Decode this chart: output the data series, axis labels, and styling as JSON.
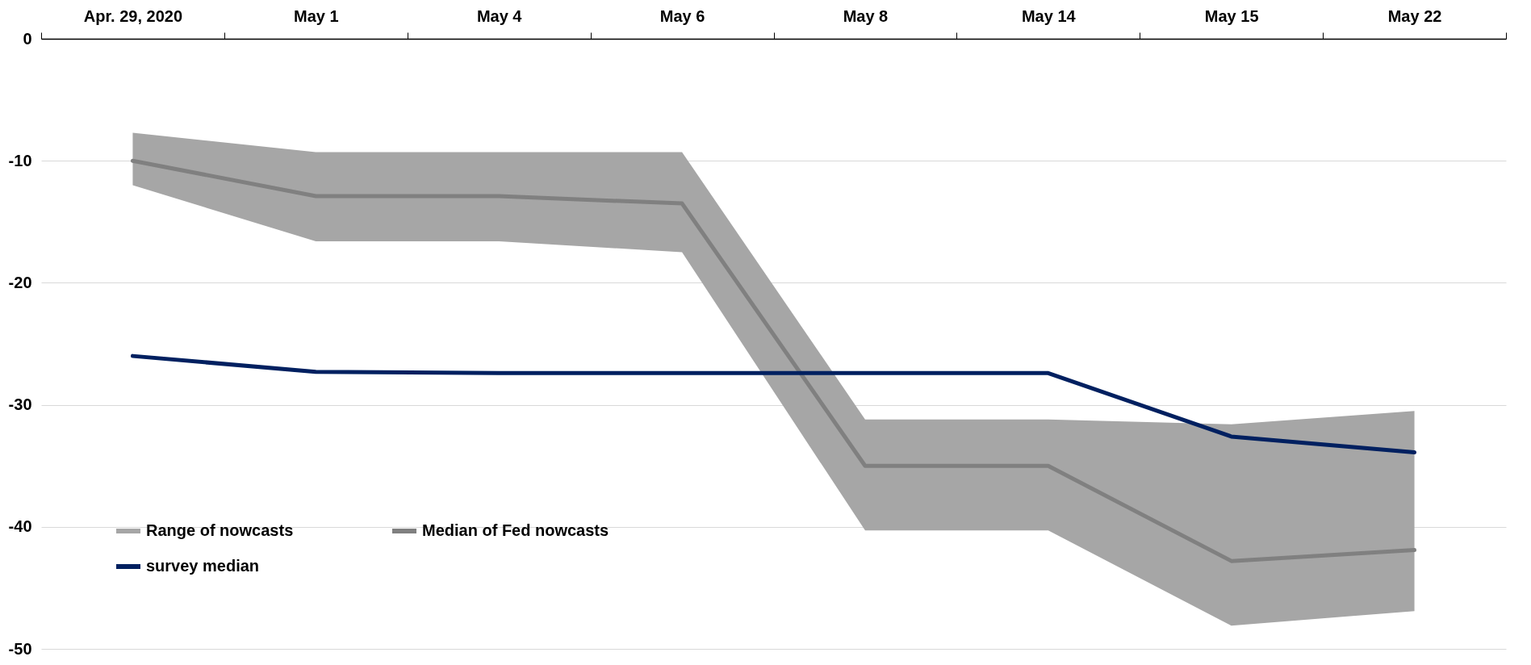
{
  "chart_data": {
    "type": "line",
    "categories": [
      "Apr. 29, 2020",
      "May 1",
      "May 4",
      "May 6",
      "May 8",
      "May 14",
      "May 15",
      "May 22"
    ],
    "series": [
      {
        "name": "Median of Fed nowcasts",
        "color": "#808080",
        "values": [
          -10.0,
          -12.9,
          -12.9,
          -13.5,
          -35.0,
          -35.0,
          -42.8,
          -41.9
        ],
        "lower": [
          -12.0,
          -16.6,
          -16.6,
          -17.5,
          -40.3,
          -40.3,
          -48.1,
          -46.9
        ],
        "upper": [
          -7.7,
          -9.3,
          -9.3,
          -9.3,
          -31.2,
          -31.2,
          -31.6,
          -30.5
        ]
      },
      {
        "name": "survey median",
        "color": "#002060",
        "values": [
          -26.0,
          -27.3,
          -27.4,
          -27.4,
          -27.4,
          -27.4,
          -32.6,
          -33.9
        ]
      }
    ],
    "annotations": [
      "Range of nowcasts"
    ],
    "ylim": [
      -50,
      0
    ],
    "yticks": [
      0,
      -10,
      -20,
      -30,
      -40,
      -50
    ],
    "grid": "y",
    "legend": "bottom left"
  }
}
